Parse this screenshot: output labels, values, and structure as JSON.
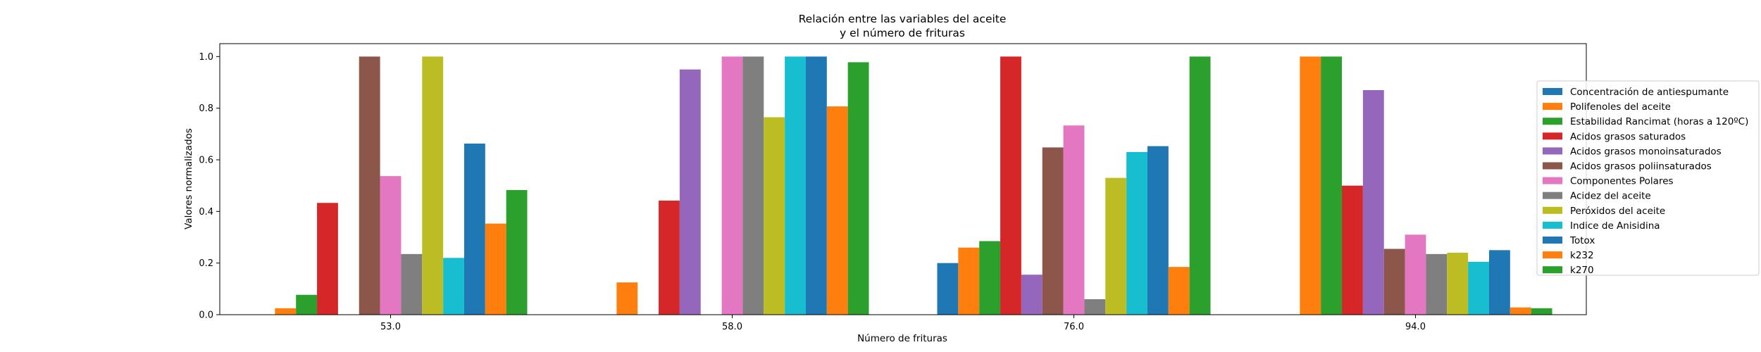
{
  "chart_data": {
    "type": "bar",
    "title": [
      "Relación entre las variables del aceite",
      "y el número de frituras"
    ],
    "xlabel": "Número de frituras",
    "ylabel": "Valores normalizados",
    "categories": [
      "53.0",
      "58.0",
      "76.0",
      "94.0"
    ],
    "ylim": [
      0,
      1.05
    ],
    "yticks": [
      "0.0",
      "0.2",
      "0.4",
      "0.6",
      "0.8",
      "1.0"
    ],
    "grid": false,
    "legend_position": "right",
    "series": [
      {
        "name": "Concentración de antiespumante",
        "color": "#1f77b4",
        "values": [
          0,
          0,
          0.2,
          0
        ]
      },
      {
        "name": "Polifenoles del aceite",
        "color": "#ff7f0e",
        "values": [
          0.025,
          0.125,
          0.26,
          1.0
        ]
      },
      {
        "name": "Estabilidad Rancimat (horas a 120ºC)",
        "color": "#2ca02c",
        "values": [
          0.077,
          0,
          0.285,
          1.0
        ]
      },
      {
        "name": "Acidos grasos saturados",
        "color": "#d62728",
        "values": [
          0.433,
          0.442,
          1.0,
          0.5
        ]
      },
      {
        "name": "Acidos grasos monoinsaturados",
        "color": "#9467bd",
        "values": [
          0,
          0.95,
          0.155,
          0.87
        ]
      },
      {
        "name": "Acidos grasos poliinsaturados",
        "color": "#8c564b",
        "values": [
          1.0,
          0,
          0.648,
          0.255
        ]
      },
      {
        "name": "Componentes Polares",
        "color": "#e377c2",
        "values": [
          0.537,
          1.0,
          0.733,
          0.31
        ]
      },
      {
        "name": "Acidez del aceite",
        "color": "#7f7f7f",
        "values": [
          0.235,
          1.0,
          0.06,
          0.235
        ]
      },
      {
        "name": "Peróxidos del aceite",
        "color": "#bcbd22",
        "values": [
          1.0,
          0.765,
          0.53,
          0.24
        ]
      },
      {
        "name": "Indice de Anisidina",
        "color": "#17becf",
        "values": [
          0.22,
          1.0,
          0.63,
          0.205
        ]
      },
      {
        "name": "Totox",
        "color": "#1f77b4",
        "values": [
          0.663,
          1.0,
          0.653,
          0.25
        ]
      },
      {
        "name": "k232",
        "color": "#ff7f0e",
        "values": [
          0.353,
          0.807,
          0.185,
          0.028
        ]
      },
      {
        "name": "k270",
        "color": "#2ca02c",
        "values": [
          0.483,
          0.978,
          1.0,
          0.025
        ]
      }
    ]
  }
}
